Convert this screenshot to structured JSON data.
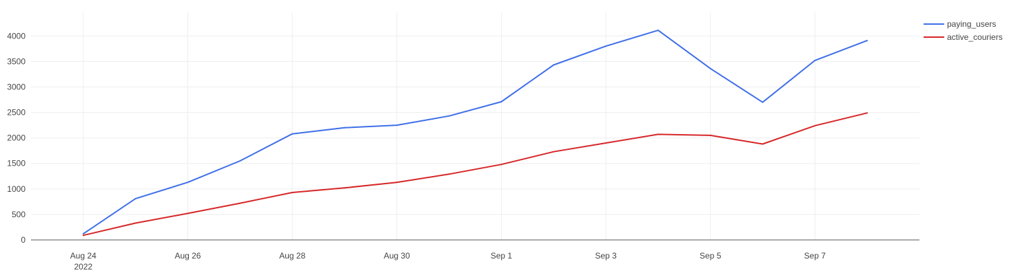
{
  "chart_data": {
    "type": "line",
    "x": [
      "2022-08-24",
      "2022-08-25",
      "2022-08-26",
      "2022-08-27",
      "2022-08-28",
      "2022-08-29",
      "2022-08-30",
      "2022-08-31",
      "2022-09-01",
      "2022-09-02",
      "2022-09-03",
      "2022-09-04",
      "2022-09-05",
      "2022-09-06",
      "2022-09-07",
      "2022-09-08"
    ],
    "series": [
      {
        "name": "paying_users",
        "color": "#3f6fe8",
        "values": [
          120,
          810,
          1130,
          1550,
          2080,
          2200,
          2250,
          2430,
          2710,
          3430,
          3800,
          4110,
          3360,
          2700,
          3520,
          3910
        ]
      },
      {
        "name": "active_couriers",
        "color": "#d62728",
        "values": [
          90,
          330,
          520,
          720,
          930,
          1020,
          1130,
          1290,
          1480,
          1730,
          1900,
          2070,
          2050,
          1880,
          2240,
          2490
        ]
      }
    ],
    "ylim": [
      0,
      4300
    ],
    "yticks": [
      0,
      500,
      1000,
      1500,
      2000,
      2500,
      3000,
      3500,
      4000
    ],
    "xticks": [
      {
        "date": "2022-08-24",
        "label": "Aug 24",
        "sublabel": "2022"
      },
      {
        "date": "2022-08-26",
        "label": "Aug 26"
      },
      {
        "date": "2022-08-28",
        "label": "Aug 28"
      },
      {
        "date": "2022-08-30",
        "label": "Aug 30"
      },
      {
        "date": "2022-09-01",
        "label": "Sep 1"
      },
      {
        "date": "2022-09-03",
        "label": "Sep 3"
      },
      {
        "date": "2022-09-05",
        "label": "Sep 5"
      },
      {
        "date": "2022-09-07",
        "label": "Sep 7"
      }
    ],
    "xlim": [
      "2022-08-23",
      "2022-09-09"
    ],
    "grid": true,
    "legend_position": "top-right"
  }
}
